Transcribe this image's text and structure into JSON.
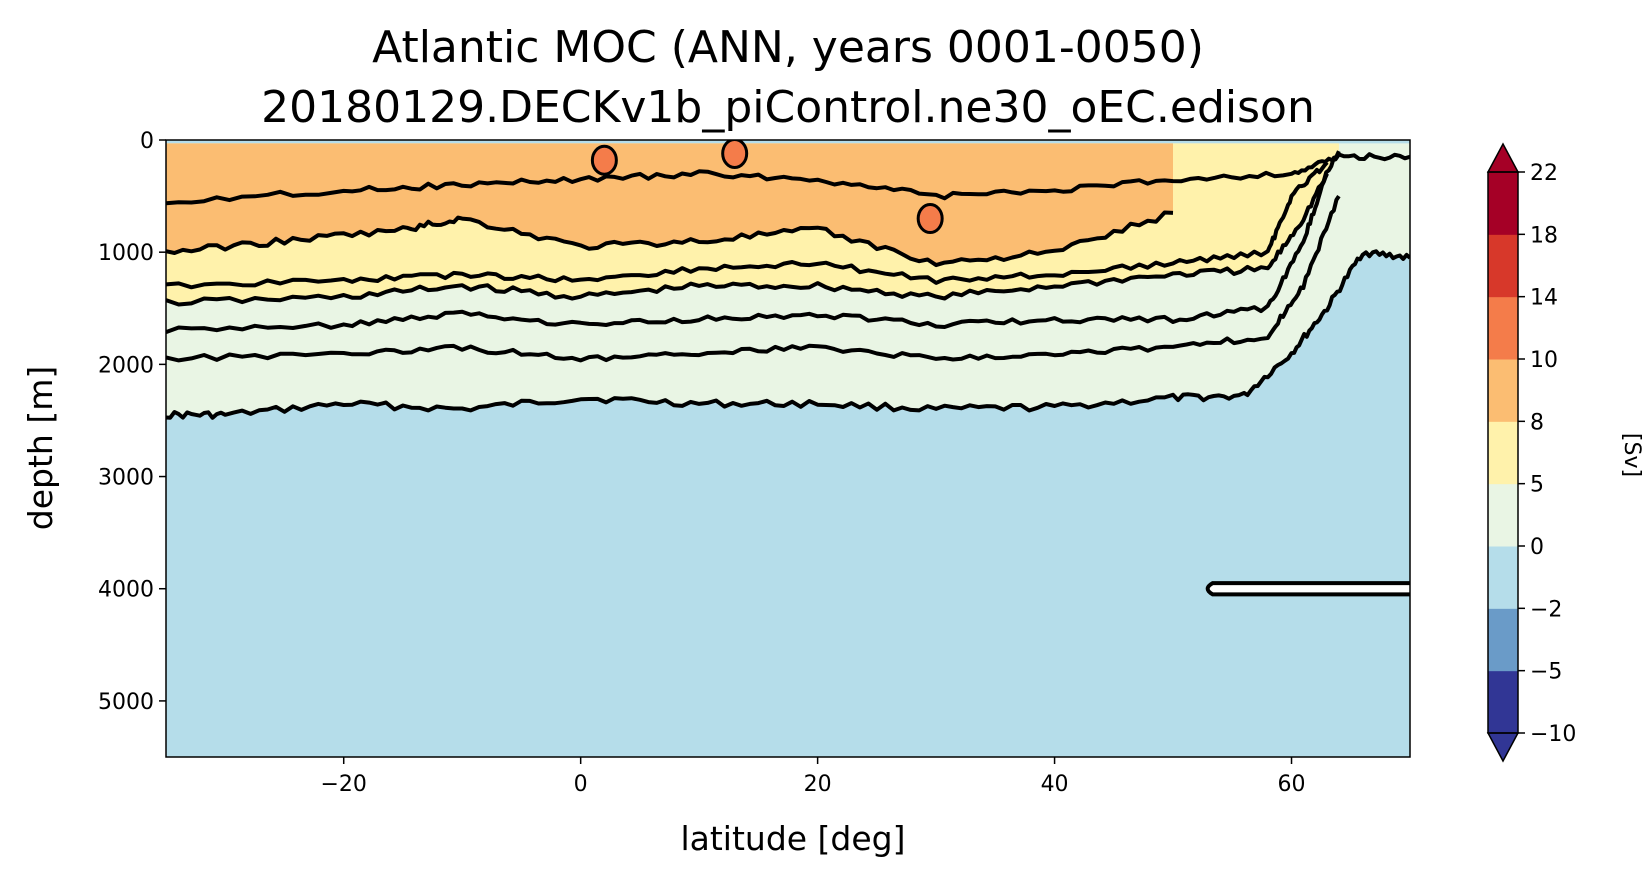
{
  "chart_data": {
    "type": "contourf",
    "title_line1": "Atlantic MOC (ANN, years 0001-0050)",
    "title_line2": "20180129.DECKv1b_piControl.ne30_oEC.edison",
    "xlabel": "latitude [deg]",
    "ylabel": "depth [m]",
    "xlim": [
      -35,
      70
    ],
    "ylim": [
      5500,
      0
    ],
    "y_inverted": true,
    "x_ticks": [
      -20,
      0,
      20,
      40,
      60
    ],
    "x_tick_labels": [
      "−20",
      "0",
      "20",
      "40",
      "60"
    ],
    "y_ticks": [
      0,
      1000,
      2000,
      3000,
      4000,
      5000
    ],
    "y_tick_labels": [
      "0",
      "1000",
      "2000",
      "3000",
      "4000",
      "5000"
    ],
    "colorbar": {
      "label": "[Sv]",
      "levels": [
        -10,
        -5,
        -2,
        0,
        5,
        8,
        10,
        14,
        18,
        22
      ],
      "tick_labels": [
        "−10",
        "−5",
        "−2",
        "0",
        "5",
        "8",
        "10",
        "14",
        "18",
        "22"
      ],
      "colors": [
        "#313695",
        "#6a9bc8",
        "#b5ddea",
        "#e9f5e4",
        "#fff2ab",
        "#fbbd72",
        "#f47c4a",
        "#d7382a",
        "#a50026"
      ],
      "extend": "both"
    },
    "contour_levels": [
      0,
      2,
      4,
      6,
      8,
      10,
      12
    ],
    "contour_line_color": "#000000",
    "regions": [
      {
        "level": "0 to 5",
        "color": "#e9f5e4",
        "boundary_x": [
          -35,
          -30,
          -20,
          -10,
          0,
          10,
          20,
          30,
          40,
          50,
          56,
          60,
          63,
          66,
          70
        ],
        "boundary_depth_m": [
          2450,
          2450,
          2350,
          2400,
          2300,
          2350,
          2350,
          2400,
          2380,
          2300,
          2280,
          1900,
          1500,
          1000,
          1050
        ]
      },
      {
        "level": "5 to 8",
        "color": "#fff2ab",
        "boundary_x": [
          -35,
          -20,
          -10,
          0,
          10,
          20,
          30,
          40,
          50,
          58,
          61,
          64
        ],
        "boundary_depth_m": [
          1450,
          1400,
          1300,
          1400,
          1300,
          1300,
          1400,
          1300,
          1200,
          1150,
          700,
          100
        ]
      },
      {
        "level": "8 to 10",
        "color": "#fbbd72",
        "boundary_x": [
          -35,
          -25,
          -15,
          -10,
          0,
          10,
          20,
          30,
          40,
          50
        ],
        "boundary_depth_m": [
          1000,
          900,
          800,
          700,
          950,
          900,
          800,
          1100,
          1000,
          650
        ]
      },
      {
        "level": "10 to 14",
        "color": "#f47c4a",
        "patches_x": [
          2,
          13,
          29.5
        ],
        "patches_depth_m": [
          180,
          120,
          700
        ]
      }
    ],
    "annotations": []
  }
}
